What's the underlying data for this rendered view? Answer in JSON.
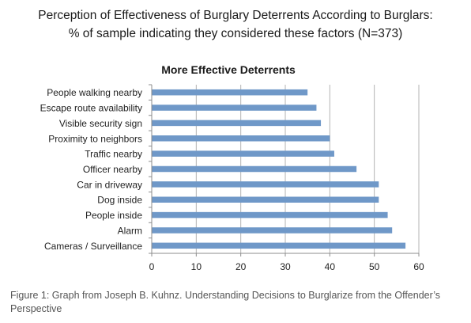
{
  "figure": {
    "title_line1": "Perception of Effectiveness of Burglary Deterrents According to Burglars:",
    "title_line2": "% of sample indicating they considered these factors (N=373)",
    "caption": "Figure 1: Graph from Joseph B. Kuhnz. Understanding Decisions to Burglarize from the Offender’s Perspective"
  },
  "chart_data": {
    "type": "bar",
    "orientation": "horizontal",
    "title": "More Effective Deterrents",
    "categories": [
      "People walking nearby",
      "Escape route availability",
      "Visible security sign",
      "Proximity to neighbors",
      "Traffic nearby",
      "Officer nearby",
      "Car in driveway",
      "Dog inside",
      "People inside",
      "Alarm",
      "Cameras / Surveillance"
    ],
    "values": [
      35,
      37,
      38,
      40,
      41,
      46,
      51,
      51,
      53,
      54,
      57
    ],
    "xlim": [
      0,
      60
    ],
    "xticks": [
      0,
      10,
      20,
      30,
      40,
      50,
      60
    ],
    "grid": "vertical",
    "legend": "none",
    "colors": {
      "bar": "#6f98c8",
      "grid": "#b3b3b3",
      "axis": "#8c8c8c"
    }
  }
}
